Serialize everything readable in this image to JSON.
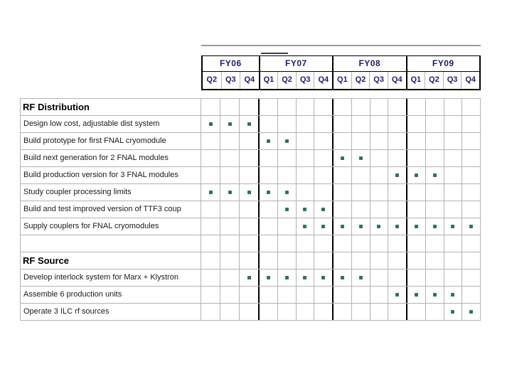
{
  "colors": {
    "dot": "#2d6e6e",
    "grid_line": "#b3b3b3",
    "year_divider": "#000000",
    "header_text": "#1b1b6f",
    "task_text": "#1a1a1a",
    "background": "#ffffff"
  },
  "chart_data": {
    "type": "table",
    "subtype": "gantt-quarter-milestones",
    "title": "",
    "legend_position": "none",
    "grid": true,
    "columns": [
      "FY06 Q2",
      "FY06 Q3",
      "FY06 Q4",
      "FY07 Q1",
      "FY07 Q2",
      "FY07 Q3",
      "FY07 Q4",
      "FY08 Q1",
      "FY08 Q2",
      "FY08 Q3",
      "FY08 Q4",
      "FY09 Q1",
      "FY09 Q2",
      "FY09 Q3",
      "FY09 Q4"
    ],
    "timeline": {
      "fiscal_years": [
        {
          "label": "FY06",
          "quarters": [
            "Q2",
            "Q3",
            "Q4"
          ]
        },
        {
          "label": "FY07",
          "quarters": [
            "Q1",
            "Q2",
            "Q3",
            "Q4"
          ]
        },
        {
          "label": "FY08",
          "quarters": [
            "Q1",
            "Q2",
            "Q3",
            "Q4"
          ]
        },
        {
          "label": "FY09",
          "quarters": [
            "Q1",
            "Q2",
            "Q3",
            "Q4"
          ]
        }
      ]
    },
    "sections": [
      {
        "title": "RF Distribution",
        "spacer_before": false,
        "tasks": [
          {
            "label": "Design low cost, adjustable dist system",
            "active_columns": [
              0,
              1,
              2
            ],
            "active_quarters": [
              "FY06 Q2",
              "FY06 Q3",
              "FY06 Q4"
            ]
          },
          {
            "label": "Build prototype for first FNAL cryomodule",
            "active_columns": [
              3,
              4
            ],
            "active_quarters": [
              "FY07 Q1",
              "FY07 Q2"
            ]
          },
          {
            "label": "Build next generation for 2 FNAL modules",
            "active_columns": [
              7,
              8
            ],
            "active_quarters": [
              "FY08 Q1",
              "FY08 Q2"
            ]
          },
          {
            "label": "Build production version for 3 FNAL modules",
            "active_columns": [
              10,
              11,
              12
            ],
            "active_quarters": [
              "FY08 Q4",
              "FY09 Q1",
              "FY09 Q2"
            ]
          },
          {
            "label": "Study coupler processing limits",
            "active_columns": [
              0,
              1,
              2,
              3,
              4
            ],
            "active_quarters": [
              "FY06 Q2",
              "FY06 Q3",
              "FY06 Q4",
              "FY07 Q1",
              "FY07 Q2"
            ]
          },
          {
            "label": "Build and test improved version of TTF3 coup",
            "active_columns": [
              4,
              5,
              6
            ],
            "active_quarters": [
              "FY07 Q2",
              "FY07 Q3",
              "FY07 Q4"
            ]
          },
          {
            "label": "Supply couplers for FNAL cryomodules",
            "active_columns": [
              5,
              6,
              7,
              8,
              9,
              10,
              11,
              12,
              13,
              14
            ],
            "active_quarters": [
              "FY07 Q3",
              "FY07 Q4",
              "FY08 Q1",
              "FY08 Q2",
              "FY08 Q3",
              "FY08 Q4",
              "FY09 Q1",
              "FY09 Q2",
              "FY09 Q3",
              "FY09 Q4"
            ]
          }
        ]
      },
      {
        "title": "RF Source",
        "spacer_before": true,
        "tasks": [
          {
            "label": "Develop interlock system for Marx + Klystron",
            "active_columns": [
              2,
              3,
              4,
              5,
              6,
              7,
              8
            ],
            "active_quarters": [
              "FY06 Q4",
              "FY07 Q1",
              "FY07 Q2",
              "FY07 Q3",
              "FY07 Q4",
              "FY08 Q1",
              "FY08 Q2"
            ]
          },
          {
            "label": "Assemble 6 production units",
            "active_columns": [
              10,
              11,
              12,
              13
            ],
            "active_quarters": [
              "FY08 Q4",
              "FY09 Q1",
              "FY09 Q2",
              "FY09 Q3"
            ]
          },
          {
            "label": "Operate 3 ILC rf sources",
            "active_columns": [
              13,
              14
            ],
            "active_quarters": [
              "FY09 Q3",
              "FY09 Q4"
            ]
          }
        ]
      }
    ]
  }
}
